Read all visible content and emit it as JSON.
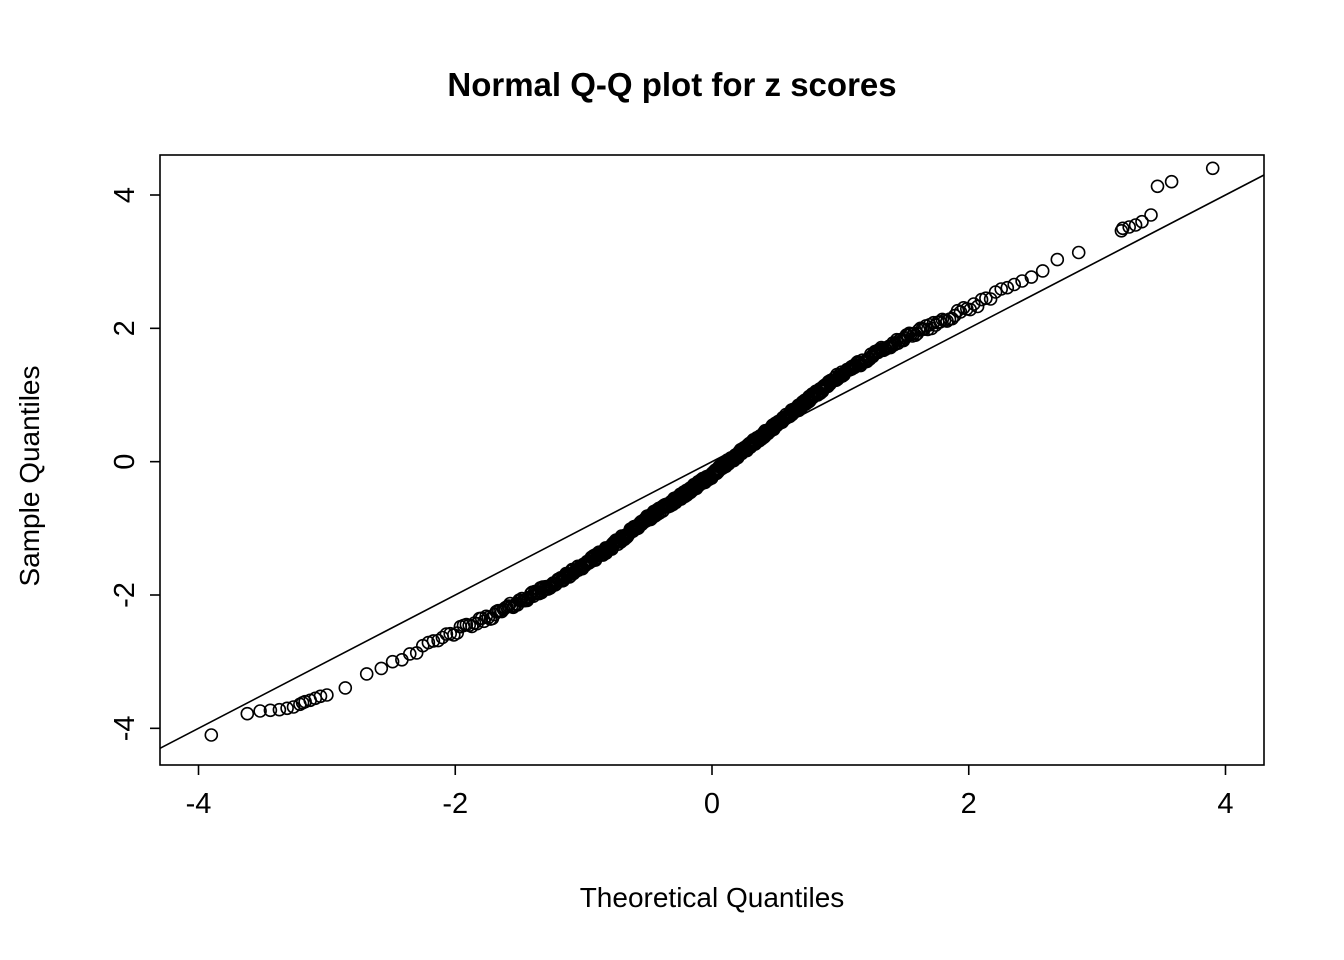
{
  "chart_data": {
    "type": "scatter",
    "title": "Normal Q-Q plot for z scores",
    "xlabel": "Theoretical Quantiles",
    "ylabel": "Sample Quantiles",
    "xlim": [
      -4.3,
      4.3
    ],
    "ylim": [
      -4.55,
      4.6
    ],
    "x_ticks": [
      -4,
      -2,
      0,
      2,
      4
    ],
    "y_ticks": [
      -4,
      -2,
      0,
      2,
      4
    ],
    "grid": false,
    "legend": "none",
    "marker": "open-circle",
    "point_color": "#000000",
    "line_color": "#000000",
    "reference_line": {
      "slope": 1,
      "intercept": 0
    },
    "n_points": 700,
    "curve_control_points": [
      [
        -3.3,
        -3.65
      ],
      [
        -3.0,
        -3.5
      ],
      [
        -2.8,
        -3.3
      ],
      [
        -2.5,
        -3.0
      ],
      [
        -2.2,
        -2.75
      ],
      [
        -2.0,
        -2.55
      ],
      [
        -1.7,
        -2.3
      ],
      [
        -1.5,
        -2.1
      ],
      [
        -1.2,
        -1.8
      ],
      [
        -1.0,
        -1.55
      ],
      [
        -0.8,
        -1.3
      ],
      [
        -0.5,
        -0.85
      ],
      [
        -0.3,
        -0.6
      ],
      [
        0.0,
        -0.2
      ],
      [
        0.3,
        0.25
      ],
      [
        0.5,
        0.55
      ],
      [
        0.8,
        1.0
      ],
      [
        1.0,
        1.3
      ],
      [
        1.3,
        1.65
      ],
      [
        1.5,
        1.85
      ],
      [
        2.0,
        2.3
      ],
      [
        2.5,
        2.8
      ],
      [
        2.8,
        3.1
      ],
      [
        3.0,
        3.3
      ],
      [
        3.2,
        3.5
      ],
      [
        3.3,
        3.55
      ]
    ],
    "tail_points_left": [
      [
        -3.9,
        -4.1
      ],
      [
        -3.62,
        -3.78
      ],
      [
        -3.52,
        -3.74
      ],
      [
        -3.44,
        -3.73
      ],
      [
        -3.37,
        -3.72
      ],
      [
        -3.31,
        -3.7
      ],
      [
        -3.26,
        -3.68
      ],
      [
        -3.21,
        -3.64
      ],
      [
        -3.17,
        -3.6
      ],
      [
        -3.13,
        -3.58
      ],
      [
        -3.09,
        -3.55
      ],
      [
        -3.05,
        -3.52
      ],
      [
        -3.0,
        -3.5
      ]
    ],
    "tail_points_right": [
      [
        3.2,
        3.5
      ],
      [
        3.25,
        3.52
      ],
      [
        3.3,
        3.55
      ],
      [
        3.35,
        3.6
      ],
      [
        3.42,
        3.7
      ],
      [
        3.47,
        4.13
      ],
      [
        3.58,
        4.2
      ],
      [
        3.9,
        4.4
      ]
    ]
  }
}
